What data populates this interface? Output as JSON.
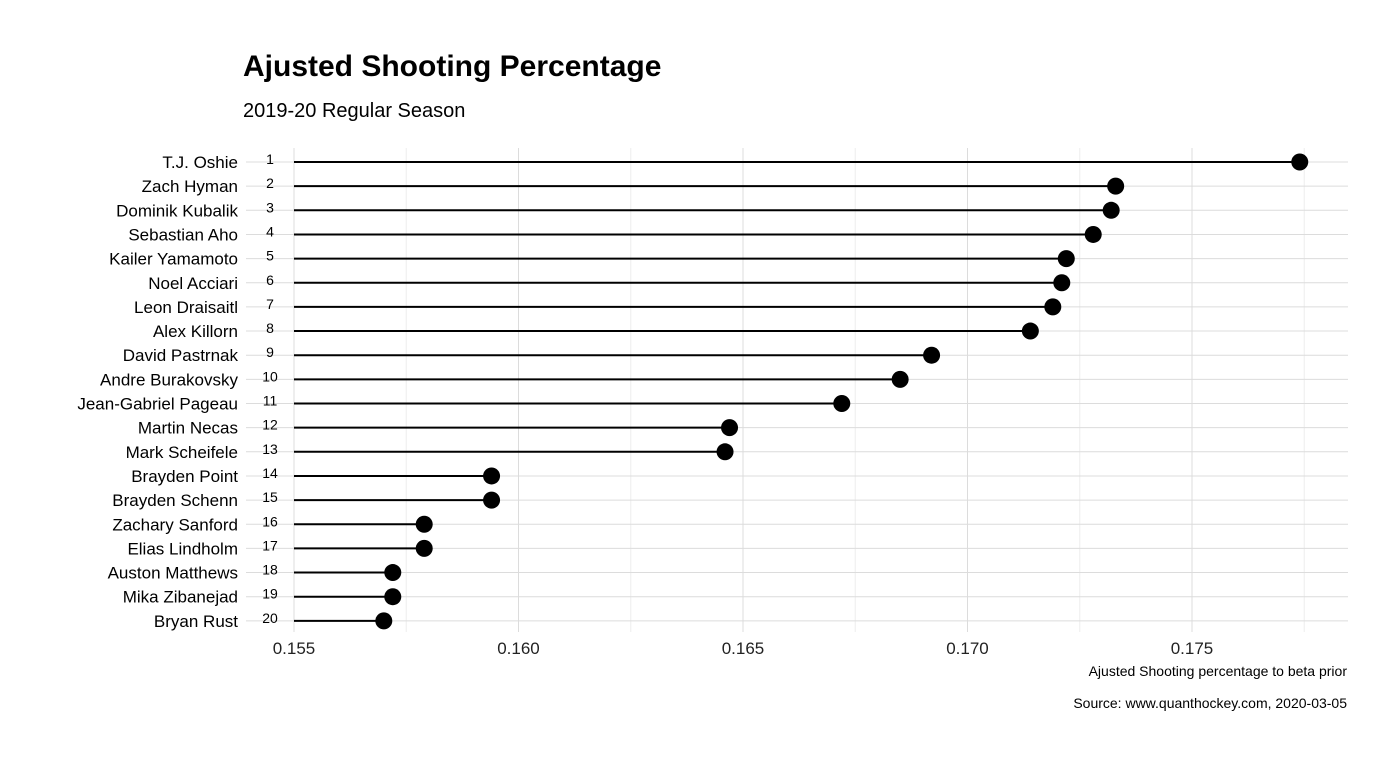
{
  "chart_data": {
    "type": "lollipop",
    "title": "Ajusted Shooting Percentage",
    "subtitle": "2019-20 Regular Season",
    "xlabel": "Ajusted Shooting percentage to beta prior",
    "caption": "Source: www.quanthockey.com, 2020-03-05",
    "xlim": [
      0.155,
      0.1785
    ],
    "xticks": [
      "0.155",
      "0.160",
      "0.165",
      "0.170",
      "0.175"
    ],
    "grid": true,
    "players": [
      {
        "rank": "1",
        "name": "T.J. Oshie",
        "value": 0.1774
      },
      {
        "rank": "2",
        "name": "Zach Hyman",
        "value": 0.1733
      },
      {
        "rank": "3",
        "name": "Dominik Kubalik",
        "value": 0.1732
      },
      {
        "rank": "4",
        "name": "Sebastian Aho",
        "value": 0.1728
      },
      {
        "rank": "5",
        "name": "Kailer Yamamoto",
        "value": 0.1722
      },
      {
        "rank": "6",
        "name": "Noel Acciari",
        "value": 0.1721
      },
      {
        "rank": "7",
        "name": "Leon Draisaitl",
        "value": 0.1719
      },
      {
        "rank": "8",
        "name": "Alex Killorn",
        "value": 0.1714
      },
      {
        "rank": "9",
        "name": "David Pastrnak",
        "value": 0.1692
      },
      {
        "rank": "10",
        "name": "Andre Burakovsky",
        "value": 0.1685
      },
      {
        "rank": "11",
        "name": "Jean-Gabriel Pageau",
        "value": 0.1672
      },
      {
        "rank": "12",
        "name": "Martin Necas",
        "value": 0.1647
      },
      {
        "rank": "13",
        "name": "Mark Scheifele",
        "value": 0.1646
      },
      {
        "rank": "14",
        "name": "Brayden Point",
        "value": 0.1594
      },
      {
        "rank": "15",
        "name": "Brayden Schenn",
        "value": 0.1594
      },
      {
        "rank": "16",
        "name": "Zachary Sanford",
        "value": 0.1579
      },
      {
        "rank": "17",
        "name": "Elias Lindholm",
        "value": 0.1579
      },
      {
        "rank": "18",
        "name": "Auston Matthews",
        "value": 0.1572
      },
      {
        "rank": "19",
        "name": "Mika Zibanejad",
        "value": 0.1572
      },
      {
        "rank": "20",
        "name": "Bryan Rust",
        "value": 0.157
      }
    ]
  }
}
